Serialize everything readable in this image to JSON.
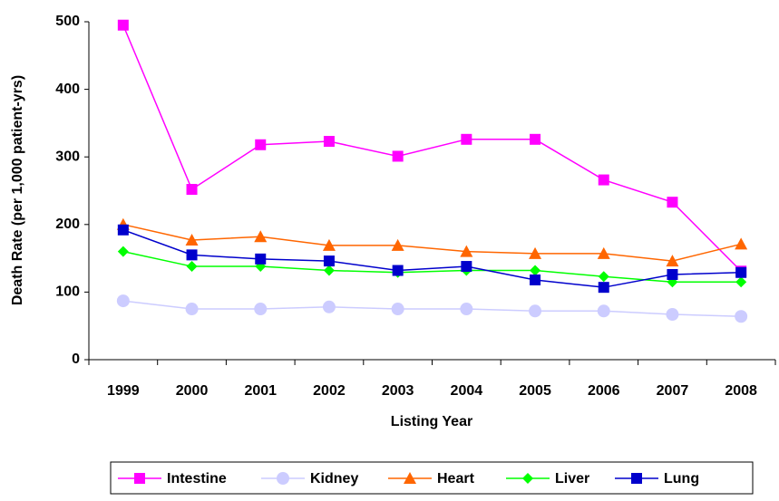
{
  "chart_data": {
    "type": "line",
    "x_label": "Listing Year",
    "y_label": "Death Rate (per 1,000 patient-yrs)",
    "categories": [
      "1999",
      "2000",
      "2001",
      "2002",
      "2003",
      "2004",
      "2005",
      "2006",
      "2007",
      "2008"
    ],
    "ylim": [
      0,
      500
    ],
    "yticks": [
      0,
      100,
      200,
      300,
      400,
      500
    ],
    "legend": "bottom",
    "series": [
      {
        "name": "Intestine",
        "color": "#ff00ff",
        "marker": "square",
        "values": [
          495,
          252,
          318,
          323,
          301,
          326,
          326,
          266,
          233,
          131
        ]
      },
      {
        "name": "Kidney",
        "color": "#ccccff",
        "marker": "circle",
        "values": [
          87,
          75,
          75,
          78,
          75,
          75,
          72,
          72,
          67,
          64
        ]
      },
      {
        "name": "Heart",
        "color": "#ff6600",
        "marker": "triangle",
        "values": [
          200,
          177,
          182,
          169,
          169,
          160,
          157,
          157,
          146,
          171
        ]
      },
      {
        "name": "Liver",
        "color": "#00ff00",
        "marker": "diamond",
        "values": [
          160,
          138,
          138,
          132,
          129,
          132,
          132,
          123,
          115,
          115
        ]
      },
      {
        "name": "Lung",
        "color": "#0000cc",
        "marker": "square",
        "values": [
          192,
          155,
          149,
          146,
          132,
          138,
          118,
          107,
          126,
          129
        ]
      }
    ]
  }
}
